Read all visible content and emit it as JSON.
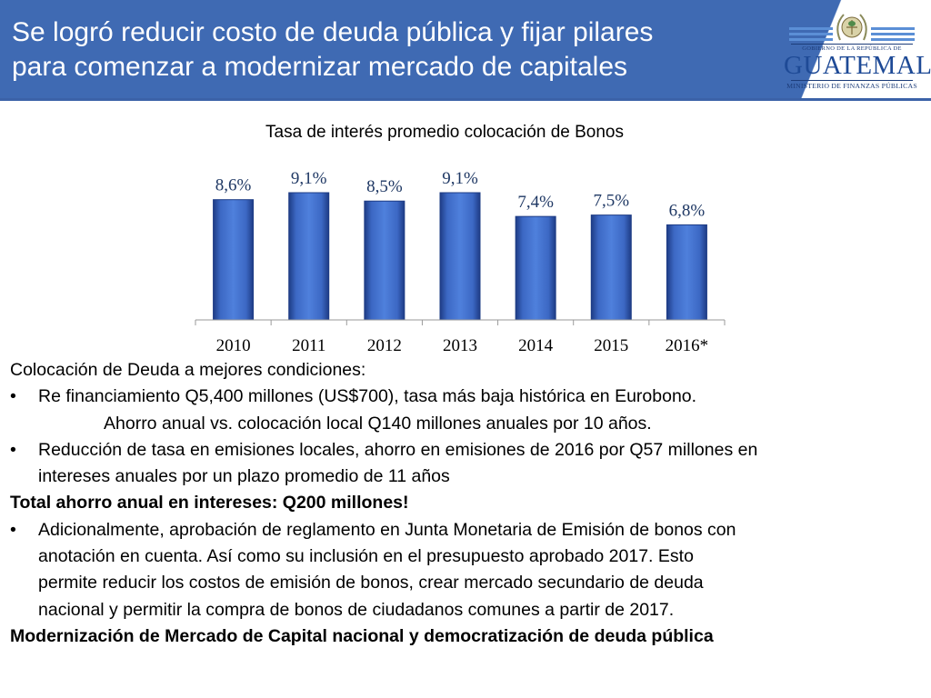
{
  "header": {
    "title_line1": "Se logró reducir costo de deuda pública y fijar pilares",
    "title_line2": "para comenzar a modernizar mercado de capitales"
  },
  "logo": {
    "gov_line": "GOBIERNO DE LA REPÚBLICA DE",
    "country": "GUATEMALA",
    "ministry": "MINISTERIO DE FINANZAS PÚBLICAS"
  },
  "colors": {
    "header_blue": "#3f6ab3",
    "bar_blue": "#3e6cc8",
    "bar_dark": "#1e3c85",
    "label_color": "#1f3864"
  },
  "chart_data": {
    "type": "bar",
    "title": "Tasa de interés promedio colocación de Bonos",
    "categories": [
      "2010",
      "2011",
      "2012",
      "2013",
      "2014",
      "2015",
      "2016*"
    ],
    "values": [
      8.6,
      9.1,
      8.5,
      9.1,
      7.4,
      7.5,
      6.8
    ],
    "data_labels": [
      "8,6%",
      "9,1%",
      "8,5%",
      "9,1%",
      "7,4%",
      "7,5%",
      "6,8%"
    ],
    "ylim": [
      0,
      9.1
    ],
    "grid": false
  },
  "body": {
    "intro": "Colocación de Deuda a mejores condiciones:",
    "bullet_glyph": "•",
    "bullet1": "Re financiamiento Q5,400 millones (US$700), tasa más baja histórica en Eurobono.",
    "bullet1_sub": "Ahorro anual vs. colocación local Q140 millones anuales por 10 años.",
    "bullet2_line1": "Reducción de tasa en emisiones locales, ahorro en emisiones de 2016 por Q57 millones en",
    "bullet2_line2": "intereses anuales por un plazo promedio de 11 años",
    "total": "Total ahorro anual en intereses: Q200 millones!",
    "bullet3_line1": "Adicionalmente, aprobación de reglamento en Junta Monetaria de Emisión de bonos con",
    "bullet3_line2": "anotación en cuenta. Así como su inclusión en el presupuesto aprobado 2017. Esto",
    "bullet3_line3": "permite reducir los costos de emisión de bonos, crear mercado secundario de deuda",
    "bullet3_line4": "nacional y permitir la compra de bonos de ciudadanos comunes a partir de 2017.",
    "closing": "Modernización de Mercado de Capital nacional y democratización de deuda pública"
  }
}
